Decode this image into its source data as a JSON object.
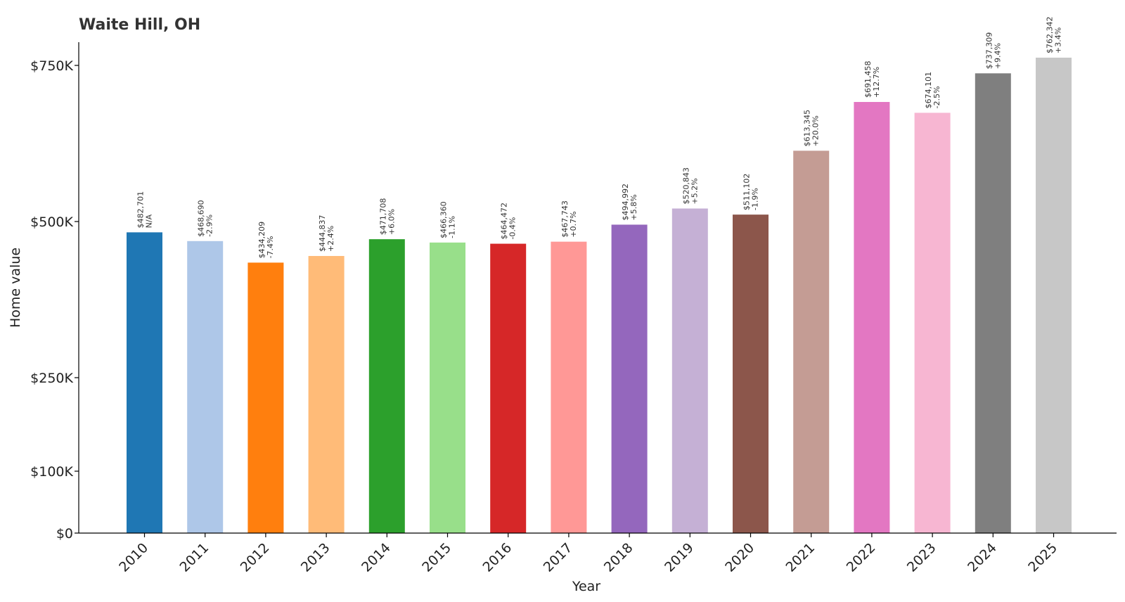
{
  "chart_data": {
    "type": "bar",
    "title": "Waite Hill, OH",
    "xlabel": "Year",
    "ylabel": "Home value",
    "ylim": [
      0,
      787000
    ],
    "y_scale": "custom (non-linear tick spacing)",
    "y_ticks": [
      {
        "value": 0,
        "label": "$0"
      },
      {
        "value": 100000,
        "label": "$100K"
      },
      {
        "value": 250000,
        "label": "$250K"
      },
      {
        "value": 500000,
        "label": "$500K"
      },
      {
        "value": 750000,
        "label": "$750K"
      }
    ],
    "categories": [
      "2010",
      "2011",
      "2012",
      "2013",
      "2014",
      "2015",
      "2016",
      "2017",
      "2018",
      "2019",
      "2020",
      "2021",
      "2022",
      "2023",
      "2024",
      "2025"
    ],
    "values": [
      482701,
      468690,
      434209,
      444837,
      471708,
      466360,
      464472,
      467743,
      494992,
      520843,
      511102,
      613345,
      691458,
      674101,
      737309,
      762342
    ],
    "value_labels": [
      "$482,701",
      "$468,690",
      "$434,209",
      "$444,837",
      "$471,708",
      "$466,360",
      "$464,472",
      "$467,743",
      "$494,992",
      "$520,843",
      "$511,102",
      "$613,345",
      "$691,458",
      "$674,101",
      "$737,309",
      "$762,342"
    ],
    "change_labels": [
      "N/A",
      "-2.9%",
      "-7.4%",
      "+2.4%",
      "+6.0%",
      "-1.1%",
      "-0.4%",
      "+0.7%",
      "+5.8%",
      "+5.2%",
      "-1.9%",
      "+20.0%",
      "+12.7%",
      "-2.5%",
      "+9.4%",
      "+3.4%"
    ],
    "colors": [
      "#1f77b4",
      "#aec7e8",
      "#ff7f0e",
      "#ffbb78",
      "#2ca02c",
      "#98df8a",
      "#d62728",
      "#ff9896",
      "#9467bd",
      "#c5b0d5",
      "#8c564b",
      "#c49c94",
      "#e377c2",
      "#f7b6d2",
      "#7f7f7f",
      "#c7c7c7"
    ],
    "grid": false,
    "legend": "none"
  }
}
